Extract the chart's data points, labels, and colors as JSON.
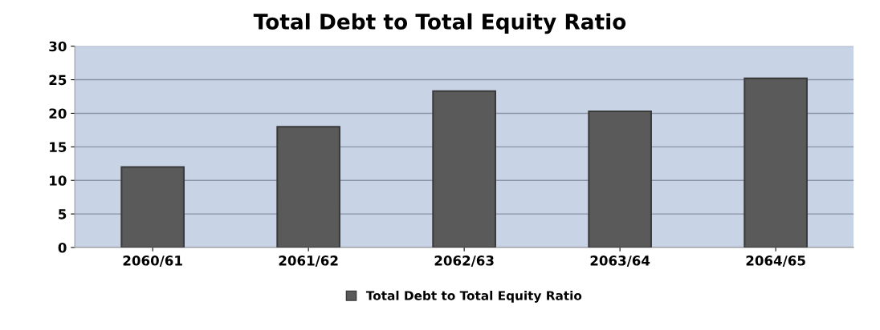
{
  "chart_data": {
    "type": "bar",
    "title": "Total Debt to Total Equity Ratio",
    "categories": [
      "2060/61",
      "2061/62",
      "2062/63",
      "2063/64",
      "2064/65"
    ],
    "series": [
      {
        "name": "Total Debt to Total Equity Ratio",
        "color": "#5a5a5a",
        "values": [
          12,
          18,
          23.3,
          20.3,
          25.2
        ]
      }
    ],
    "ylim": [
      0,
      30
    ],
    "yticks": [
      0,
      5,
      10,
      15,
      20,
      25,
      30
    ],
    "grid": "y",
    "legend": "bottom"
  }
}
